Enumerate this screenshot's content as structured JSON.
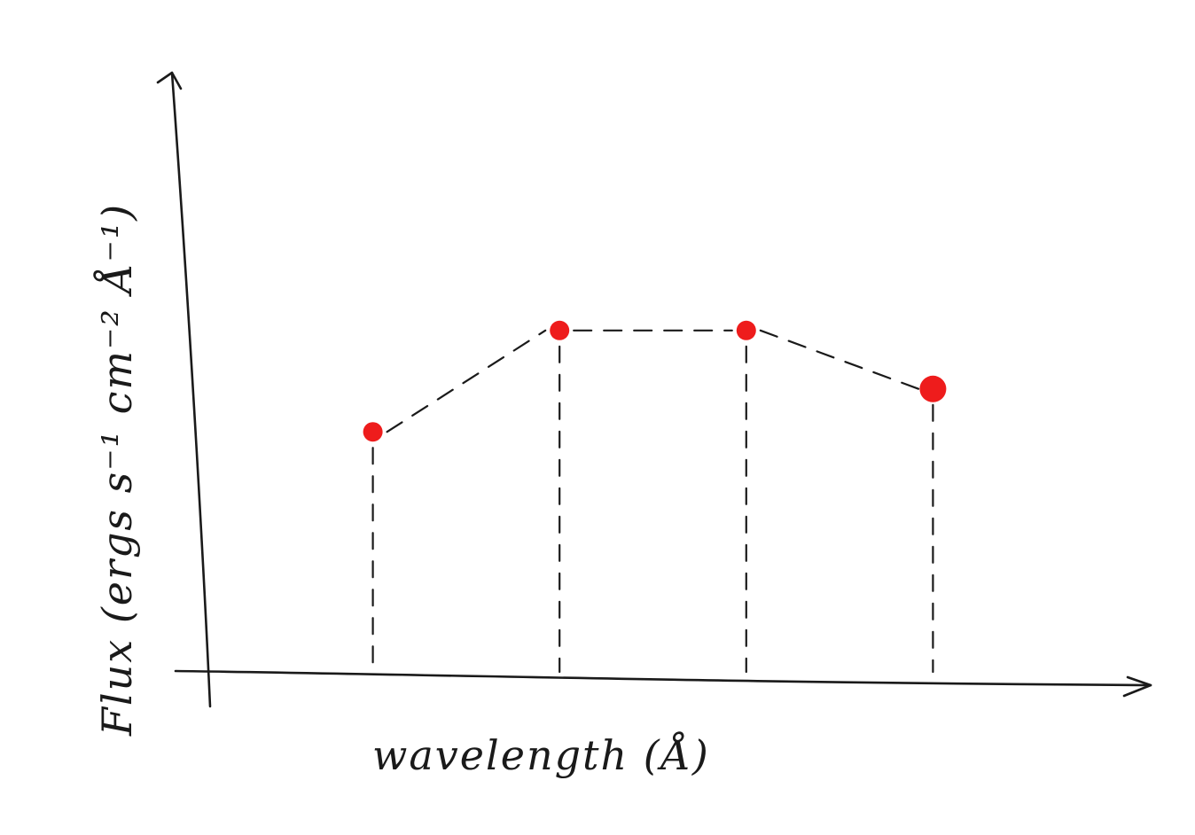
{
  "chart_data": {
    "type": "line",
    "title": "",
    "xlabel": "wavelength (Å)",
    "ylabel": "Flux (ergs s⁻¹ cm⁻² Å⁻¹)",
    "x": [
      1,
      2,
      3,
      4
    ],
    "series": [
      {
        "values": [
          0.62,
          0.88,
          0.88,
          0.73
        ],
        "color": "#ee1c1c",
        "marker": "circle",
        "line_style": "dashed"
      }
    ],
    "xlim": [
      0,
      5
    ],
    "ylim": [
      0,
      1.5
    ],
    "x_ticks": [],
    "y_ticks": [],
    "grid": false,
    "drop_lines": true,
    "axis_color": "#1a1a1a",
    "style": "hand-drawn"
  }
}
